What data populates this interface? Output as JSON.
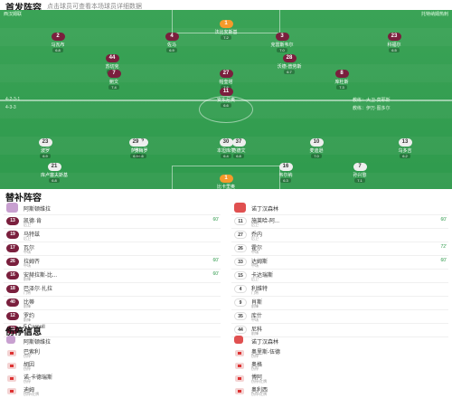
{
  "header": {
    "title": "首发阵容",
    "subtitle": "点击球员可查看本场球员详细数据"
  },
  "pitch": {
    "home_team": "西汉姆联",
    "away_team": "托特纳姆热刺",
    "home_formation": "4-2-3-1",
    "away_formation": "4-3-3",
    "home_coach": "教练：大卫·莫耶斯",
    "away_coach": "教练：伊万·图多尔",
    "home_players": [
      {
        "num": "1",
        "name": "法比安斯基",
        "rating": "7.2",
        "gk": true
      },
      {
        "num": "2",
        "name": "马瓦布",
        "rating": "6.8"
      },
      {
        "num": "4",
        "name": "佐马",
        "rating": "6.9"
      },
      {
        "num": "3",
        "name": "克雷斯韦尔",
        "rating": "7.0"
      },
      {
        "num": "23",
        "name": "科福尔",
        "rating": "6.5"
      },
      {
        "num": "44",
        "name": "苏切克",
        "rating": "7.1"
      },
      {
        "num": "28",
        "name": "沃德-普劳斯",
        "rating": "6.7"
      },
      {
        "num": "7",
        "name": "鲍文",
        "rating": "7.4"
      },
      {
        "num": "27",
        "name": "帕奎塔",
        "rating": "7.6"
      },
      {
        "num": "8",
        "name": "库杜斯",
        "rating": "7.3"
      },
      {
        "num": "11",
        "name": "安东尼奥",
        "rating": "6.6"
      }
    ],
    "away_players": [
      {
        "num": "1",
        "name": "比卡里奥",
        "rating": "6.4",
        "gk": true
      },
      {
        "num": "23",
        "name": "波罗",
        "rating": "6.9"
      },
      {
        "num": "17",
        "name": "罗梅罗",
        "rating": "6.6"
      },
      {
        "num": "37",
        "name": "范德文",
        "rating": "6.8"
      },
      {
        "num": "13",
        "name": "乌多吉",
        "rating": "6.2"
      },
      {
        "num": "10",
        "name": "麦迪逊",
        "rating": "7.0"
      },
      {
        "num": "29",
        "name": "萨尔",
        "rating": "6.5"
      },
      {
        "num": "30",
        "name": "本坦库尔",
        "rating": "6.4"
      },
      {
        "num": "21",
        "name": "库卢塞夫斯基",
        "rating": "6.8"
      },
      {
        "num": "16",
        "name": "韦尔纳",
        "rating": "6.3"
      },
      {
        "num": "7",
        "name": "孙兴慜",
        "rating": "7.1"
      }
    ]
  },
  "subs": {
    "title": "替补阵容",
    "home_coach": "阿斯顿维拉",
    "away_coach": "诺丁汉森林",
    "home": [
      {
        "num": "13",
        "name": "凯德·肯",
        "pos": "后卫",
        "min": "60'"
      },
      {
        "num": "19",
        "name": "马特兹",
        "pos": "后卫"
      },
      {
        "num": "17",
        "name": "瓦尔",
        "pos": "中场"
      },
      {
        "num": "26",
        "name": "拉姆齐",
        "pos": "中场",
        "min": "60'"
      },
      {
        "num": "16",
        "name": "安赫拉斯-比...",
        "pos": "前锋",
        "min": "60'"
      },
      {
        "num": "18",
        "name": "巴泽尔·扎拉",
        "pos": "门将"
      },
      {
        "num": "40",
        "name": "比蒂",
        "pos": "前锋"
      },
      {
        "num": "12",
        "name": "罗约",
        "pos": "前锋"
      },
      {
        "num": "31",
        "name": "F.Carnell",
        "pos": "中场"
      }
    ],
    "away": [
      {
        "num": "11",
        "name": "施莱哈-阿...",
        "pos": "后卫",
        "min": "60'"
      },
      {
        "num": "27",
        "name": "乔内",
        "pos": "后卫"
      },
      {
        "num": "26",
        "name": "霍尔",
        "pos": "中场",
        "min": "72'"
      },
      {
        "num": "33",
        "name": "达姆斯",
        "pos": "中场",
        "min": "60'"
      },
      {
        "num": "15",
        "name": "卡达瑞斯",
        "pos": "后卫"
      },
      {
        "num": "4",
        "name": "利维特",
        "pos": "门将"
      },
      {
        "num": "9",
        "name": "肖斯",
        "pos": "前锋"
      },
      {
        "num": "35",
        "name": "库什",
        "pos": "中场"
      },
      {
        "num": "44",
        "name": "尼科",
        "pos": "前锋"
      }
    ]
  },
  "injuries": {
    "title": "伤停信息",
    "home_team": "阿斯顿维拉",
    "away_team": "诺丁汉森林",
    "home": [
      {
        "name": "巴索利",
        "status": "伤停"
      },
      {
        "name": "胡因",
        "status": "伤停"
      },
      {
        "name": "诺-卡德瑞斯",
        "status": "伤停"
      },
      {
        "name": "迪姆",
        "status": "伤停/红牌"
      }
    ],
    "away": [
      {
        "name": "奥里斯-伍德",
        "status": "伤停"
      },
      {
        "name": "奥格",
        "status": "伤停"
      },
      {
        "name": "博阿",
        "status": "伤停/红牌"
      },
      {
        "name": "奥利西",
        "status": "伤停/红牌"
      }
    ]
  },
  "colors": {
    "home": "#7a1f3d",
    "pitch": "#33a052",
    "gk": "#f59a2b",
    "accent": "#2e9a4b"
  }
}
